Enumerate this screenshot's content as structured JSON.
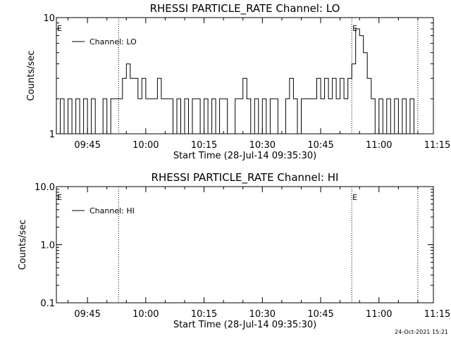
{
  "footer": {
    "timestamp": "24-Oct-2021 15:21"
  },
  "chart_data": [
    {
      "type": "line",
      "title": "RHESSI PARTICLE_RATE Channel: LO",
      "xlabel": "Start Time (28-Jul-14 09:35:30)",
      "ylabel": "Counts/sec",
      "yscale": "log",
      "xlim": [
        "09:37",
        "11:14"
      ],
      "ylim": [
        1,
        10
      ],
      "x_ticks": [
        "09:45",
        "10:00",
        "10:15",
        "10:30",
        "10:45",
        "11:00",
        "11:15"
      ],
      "y_ticks": [
        "1",
        "10"
      ],
      "legend": {
        "entry": "Channel: LO",
        "position": "top-left"
      },
      "markers": [
        {
          "time": "09:53",
          "label": ""
        },
        {
          "time": "10:53",
          "label": "E"
        },
        {
          "time": "11:10",
          "label": ""
        }
      ],
      "corner_label": "E",
      "series": [
        {
          "name": "Channel: LO",
          "x": [
            "09:37",
            "09:38",
            "09:39",
            "09:40",
            "09:41",
            "09:42",
            "09:43",
            "09:44",
            "09:45",
            "09:46",
            "09:47",
            "09:48",
            "09:49",
            "09:50",
            "09:51",
            "09:52",
            "09:53",
            "09:54",
            "09:55",
            "09:56",
            "09:57",
            "09:58",
            "09:59",
            "10:00",
            "10:01",
            "10:02",
            "10:03",
            "10:04",
            "10:05",
            "10:06",
            "10:07",
            "10:08",
            "10:09",
            "10:10",
            "10:11",
            "10:12",
            "10:13",
            "10:14",
            "10:15",
            "10:16",
            "10:17",
            "10:18",
            "10:19",
            "10:20",
            "10:21",
            "10:22",
            "10:23",
            "10:24",
            "10:25",
            "10:26",
            "10:27",
            "10:28",
            "10:29",
            "10:30",
            "10:31",
            "10:32",
            "10:33",
            "10:34",
            "10:35",
            "10:36",
            "10:37",
            "10:38",
            "10:39",
            "10:40",
            "10:41",
            "10:42",
            "10:43",
            "10:44",
            "10:45",
            "10:46",
            "10:47",
            "10:48",
            "10:49",
            "10:50",
            "10:51",
            "10:52",
            "10:53",
            "10:54",
            "10:55",
            "10:56",
            "10:57",
            "10:58",
            "10:59",
            "11:00",
            "11:01",
            "11:02",
            "11:03",
            "11:04",
            "11:05",
            "11:06",
            "11:07",
            "11:08",
            "11:09",
            "11:10"
          ],
          "values": [
            1,
            2,
            1,
            2,
            1,
            2,
            1,
            2,
            1,
            2,
            1,
            1,
            2,
            1,
            2,
            2,
            2,
            3,
            4,
            3,
            3,
            2,
            3,
            2,
            2,
            2,
            3,
            2,
            2,
            2,
            1,
            2,
            1,
            2,
            1,
            2,
            2,
            1,
            2,
            1,
            2,
            1,
            2,
            2,
            1,
            1,
            2,
            2,
            3,
            2,
            1,
            2,
            1,
            2,
            1,
            2,
            2,
            1,
            1,
            2,
            3,
            2,
            1,
            2,
            2,
            2,
            2,
            3,
            2,
            3,
            2,
            3,
            2,
            3,
            2,
            3,
            4,
            8,
            7,
            5,
            3,
            2,
            1,
            2,
            1,
            2,
            1,
            2,
            1,
            2,
            1,
            2,
            1,
            1
          ]
        }
      ]
    },
    {
      "type": "line",
      "title": "RHESSI PARTICLE_RATE Channel: HI",
      "xlabel": "Start Time (28-Jul-14 09:35:30)",
      "ylabel": "Counts/sec",
      "yscale": "log",
      "xlim": [
        "09:37",
        "11:14"
      ],
      "ylim": [
        0.1,
        10
      ],
      "x_ticks": [
        "09:45",
        "10:00",
        "10:15",
        "10:30",
        "10:45",
        "11:00",
        "11:15"
      ],
      "y_ticks": [
        "0.1",
        "1.0",
        "10.0"
      ],
      "legend": {
        "entry": "Channel: HI",
        "position": "top-left"
      },
      "markers": [
        {
          "time": "09:53",
          "label": ""
        },
        {
          "time": "10:53",
          "label": "E"
        },
        {
          "time": "11:10",
          "label": ""
        }
      ],
      "corner_label": "E",
      "series": [
        {
          "name": "Channel: HI",
          "x": [],
          "values": []
        }
      ]
    }
  ]
}
